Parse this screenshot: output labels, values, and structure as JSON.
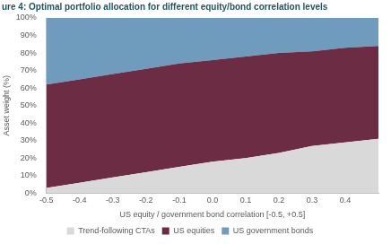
{
  "chart_data": {
    "type": "area",
    "title": "ure 4: Optimal portfolio allocation for different equity/bond correlation levels",
    "x_label": "US equity / government bond correlation [-0.5, +0.5]",
    "y_label": "Asset weight (%)",
    "x": [
      -0.5,
      -0.4,
      -0.3,
      -0.2,
      -0.1,
      0,
      0.1,
      0.2,
      0.3,
      0.4,
      0.5
    ],
    "series": [
      {
        "name": "Trend-following CTAs",
        "color": "#d9d9d9",
        "values": [
          3,
          6,
          9,
          12,
          15,
          18,
          20,
          23,
          27,
          29,
          31
        ]
      },
      {
        "name": "US equities",
        "color": "#6b2c44",
        "values": [
          59,
          59,
          59,
          59,
          59,
          58,
          58,
          57,
          54,
          54,
          53
        ]
      },
      {
        "name": "US government bonds",
        "color": "#6f9bbd",
        "values": [
          38,
          35,
          32,
          29,
          26,
          24,
          22,
          20,
          19,
          17,
          16
        ]
      }
    ],
    "xlim": [
      -0.5,
      0.5
    ],
    "xticks": [
      -0.5,
      -0.4,
      -0.3,
      -0.2,
      -0.1,
      {
        "value": 0,
        "label": "0.0"
      },
      0.1,
      0.2,
      0.3,
      0.4
    ],
    "ylim": [
      0,
      100
    ],
    "yticks": [
      {
        "value": 0,
        "label": "0%"
      },
      {
        "value": 10,
        "label": "10%"
      },
      {
        "value": 20,
        "label": "20%"
      },
      {
        "value": 30,
        "label": "30%"
      },
      {
        "value": 40,
        "label": "40%"
      },
      {
        "value": 50,
        "label": "50%"
      },
      {
        "value": 60,
        "label": "60%"
      },
      {
        "value": 70,
        "label": "70%"
      },
      {
        "value": 80,
        "label": "80%"
      },
      {
        "value": 90,
        "label": "90%"
      },
      {
        "value": 100,
        "label": "100%"
      }
    ],
    "stacked": true,
    "legend": "bottom",
    "grid": false
  }
}
